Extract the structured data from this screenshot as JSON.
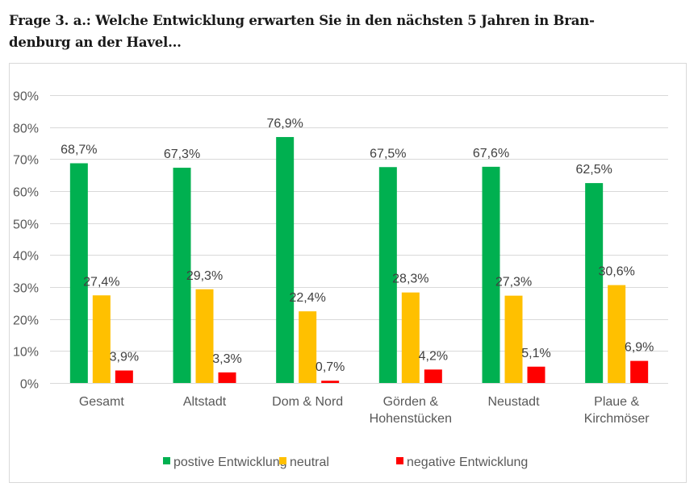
{
  "title": "Frage 3. a.: Welche Entwicklung erwarten Sie in den nächsten 5 Jahren in Brandenburg an der Havel...",
  "title_lines": [
    "Frage 3. a.: Welche Entwicklung erwarten Sie in den nächsten 5 Jahren in Bran-",
    "denburg an der Havel..."
  ],
  "chart_data": {
    "type": "bar",
    "title": "",
    "xlabel": "",
    "ylabel": "",
    "ylim": [
      0,
      90
    ],
    "yticks": [
      0,
      10,
      20,
      30,
      40,
      50,
      60,
      70,
      80,
      90
    ],
    "ytick_labels": [
      "0%",
      "10%",
      "20%",
      "30%",
      "40%",
      "50%",
      "60%",
      "70%",
      "80%",
      "90%"
    ],
    "grid": true,
    "legend_position": "bottom",
    "categories": [
      [
        "Gesamt"
      ],
      [
        "Altstadt"
      ],
      [
        "Dom & Nord"
      ],
      [
        "Görden &",
        "Hohenstücken"
      ],
      [
        "Neustadt"
      ],
      [
        "Plaue &",
        "Kirchmöser"
      ]
    ],
    "series": [
      {
        "name": "postive Entwicklung",
        "color": "#00b050",
        "values": [
          68.7,
          67.3,
          76.9,
          67.5,
          67.6,
          62.5
        ],
        "labels": [
          "68,7%",
          "67,3%",
          "76,9%",
          "67,5%",
          "67,6%",
          "62,5%"
        ]
      },
      {
        "name": "neutral",
        "color": "#ffc000",
        "values": [
          27.4,
          29.3,
          22.4,
          28.3,
          27.3,
          30.6
        ],
        "labels": [
          "27,4%",
          "29,3%",
          "22,4%",
          "28,3%",
          "27,3%",
          "30,6%"
        ]
      },
      {
        "name": "negative Entwicklung",
        "color": "#ff0000",
        "values": [
          3.9,
          3.3,
          0.7,
          4.2,
          5.1,
          6.9
        ],
        "labels": [
          "3,9%",
          "3,3%",
          "0,7%",
          "4,2%",
          "5,1%",
          "6,9%"
        ]
      }
    ],
    "colors": {
      "grid": "#d9d9d9",
      "text": "#595959"
    }
  }
}
